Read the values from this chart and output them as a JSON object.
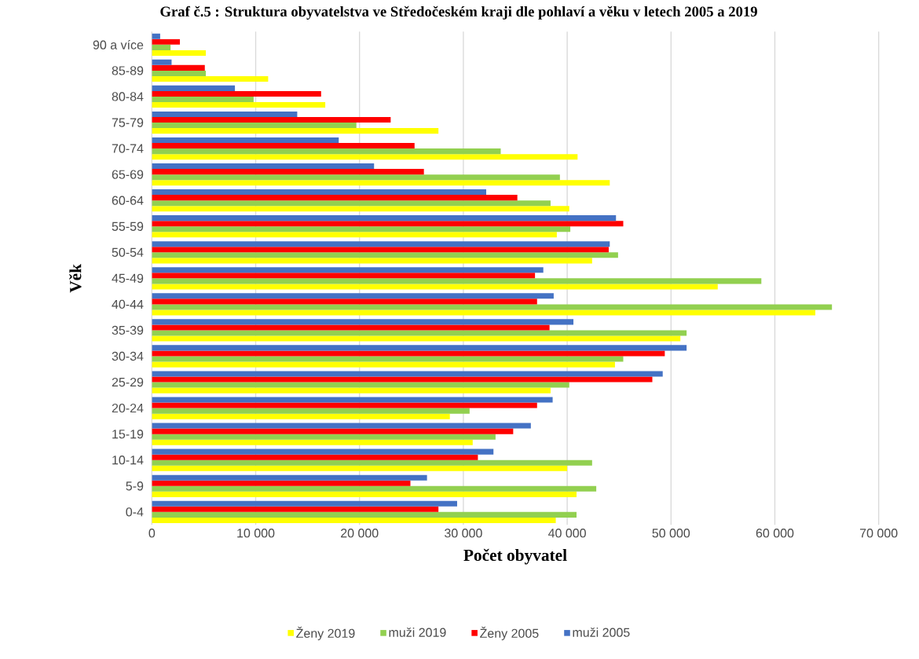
{
  "chart_data": {
    "type": "bar",
    "orientation": "horizontal",
    "title": "Graf č.5 : Struktura obyvatelstva ve Středočeském kraji dle pohlaví a věku v letech 2005 a 2019",
    "xlabel": "Počet obyvatel",
    "ylabel": "Věk",
    "categories": [
      "90 a více",
      "85-89",
      "80-84",
      "75-79",
      "70-74",
      "65-69",
      "60-64",
      "55-59",
      "50-54",
      "45-49",
      "40-44",
      "35-39",
      "30-34",
      "25-29",
      "20-24",
      "15-19",
      "10-14",
      "5-9",
      "0-4"
    ],
    "series": [
      {
        "name": "Ženy 2019",
        "color": "#ffff00",
        "values": [
          5200,
          11200,
          16700,
          27600,
          41000,
          44100,
          40200,
          39000,
          42400,
          54500,
          63900,
          50900,
          44600,
          38400,
          28700,
          30900,
          40000,
          40900,
          38900
        ]
      },
      {
        "name": "muži 2019",
        "color": "#92d050",
        "values": [
          1800,
          5200,
          9800,
          19700,
          33600,
          39300,
          38400,
          40300,
          44900,
          58700,
          65500,
          51500,
          45400,
          40200,
          30600,
          33100,
          42400,
          42800,
          40900
        ]
      },
      {
        "name": "Ženy 2005",
        "color": "#ff0000",
        "values": [
          2700,
          5100,
          16300,
          23000,
          25300,
          26200,
          35200,
          45400,
          44000,
          36900,
          37100,
          38300,
          49400,
          48200,
          37100,
          34800,
          31400,
          24900,
          27600
        ]
      },
      {
        "name": "muži 2005",
        "color": "#4472c4",
        "values": [
          800,
          1900,
          8000,
          14000,
          18000,
          21400,
          32200,
          44700,
          44100,
          37700,
          38700,
          40600,
          51500,
          49200,
          38600,
          36500,
          32900,
          26500,
          29400
        ]
      }
    ],
    "xlim": [
      0,
      70000
    ],
    "xticks": [
      0,
      {
        "value": 10000,
        "label": "10 000"
      },
      {
        "value": 20000,
        "label": "20 000"
      },
      {
        "value": 30000,
        "label": "30 000"
      },
      {
        "value": 40000,
        "label": "40 000"
      },
      {
        "value": 50000,
        "label": "50 000"
      },
      {
        "value": 60000,
        "label": "60 000"
      },
      {
        "value": 70000,
        "label": "70 000"
      }
    ],
    "grid": "x",
    "legend": "bottom"
  }
}
